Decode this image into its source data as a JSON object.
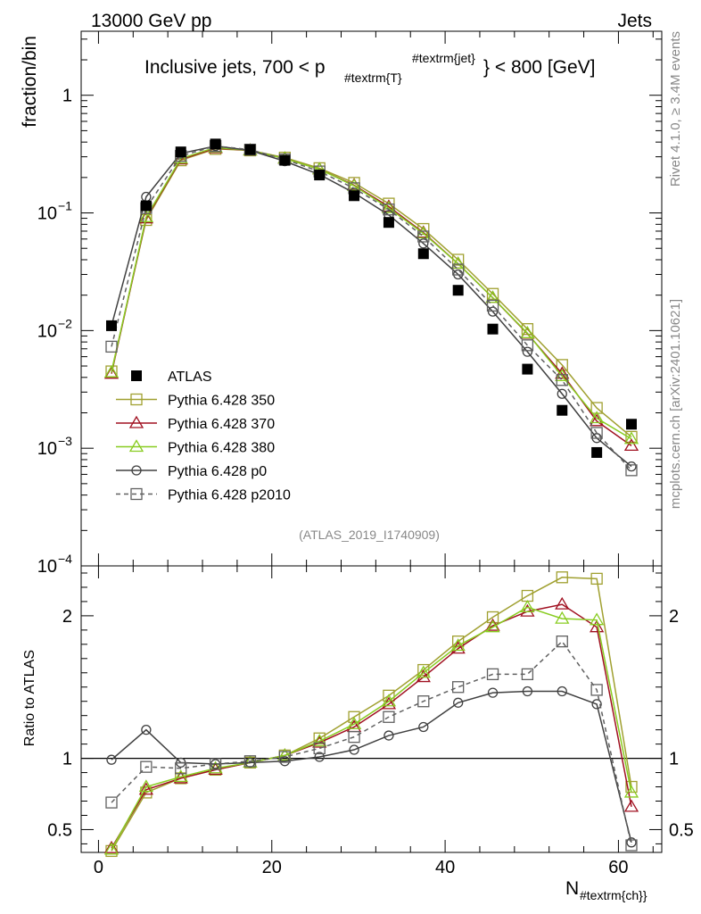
{
  "header": {
    "left": "13000 GeV pp",
    "right": "Jets"
  },
  "side": {
    "top": "Rivet 4.1.0, ≥ 3.4M events",
    "bottom": "mcplots.cern.ch [arXiv:2401.10621]"
  },
  "colors": {
    "atlas": "#000000",
    "p350": "#a0a030",
    "p370": "#a01020",
    "p380": "#88cc20",
    "p0": "#404040",
    "p2010": "#606060"
  },
  "chart_data": [
    {
      "type": "line",
      "title": "Inclusive jets, 700 < p",
      "title_sub": "#textrm{T}",
      "title_sup": "#textrm{jet}",
      "title_tail": "} < 800 [GeV]",
      "ylabel": "fraction/bin",
      "yscale": "log",
      "ylim": [
        0.0001,
        3.5
      ],
      "xlim": [
        -2,
        65
      ],
      "y_ticks": [
        {
          "v": 1,
          "base": "1",
          "exp": ""
        },
        {
          "v": 0.1,
          "base": "10",
          "exp": "−1"
        },
        {
          "v": 0.01,
          "base": "10",
          "exp": "−2"
        },
        {
          "v": 0.001,
          "base": "10",
          "exp": "−3"
        },
        {
          "v": 0.0001,
          "base": "10",
          "exp": "−4"
        }
      ],
      "watermark": "(ATLAS_2019_I1740909)",
      "x": [
        1.5,
        5.5,
        9.5,
        13.5,
        17.5,
        21.5,
        25.5,
        29.5,
        33.5,
        37.5,
        41.5,
        45.5,
        49.5,
        53.5,
        57.5,
        61.5
      ],
      "data": {
        "name": "ATLAS",
        "values": [
          0.011,
          0.115,
          0.33,
          0.385,
          0.345,
          0.28,
          0.21,
          0.14,
          0.083,
          0.045,
          0.022,
          0.0103,
          0.0047,
          0.0021,
          0.00092,
          0.0016
        ]
      },
      "series": [
        {
          "key": "p350",
          "name": "Pythia 6.428 350",
          "marker": "square",
          "dash": false,
          "values": [
            0.0045,
            0.087,
            0.28,
            0.35,
            0.34,
            0.295,
            0.24,
            0.18,
            0.12,
            0.073,
            0.04,
            0.0205,
            0.0103,
            0.0051,
            0.0022,
            0.00125
          ]
        },
        {
          "key": "p370",
          "name": "Pythia 6.428 370",
          "marker": "triangle",
          "dash": false,
          "values": [
            0.0043,
            0.09,
            0.285,
            0.355,
            0.34,
            0.29,
            0.235,
            0.172,
            0.113,
            0.068,
            0.037,
            0.019,
            0.0094,
            0.0043,
            0.0017,
            0.00105
          ]
        },
        {
          "key": "p380",
          "name": "Pythia 6.428 380",
          "marker": "triangle",
          "dash": false,
          "values": [
            0.0044,
            0.092,
            0.29,
            0.36,
            0.34,
            0.29,
            0.235,
            0.17,
            0.11,
            0.067,
            0.037,
            0.019,
            0.0095,
            0.0041,
            0.0018,
            0.0012
          ]
        },
        {
          "key": "p0",
          "name": "Pythia 6.428 p0",
          "marker": "circle",
          "dash": false,
          "values": [
            0.011,
            0.137,
            0.32,
            0.37,
            0.34,
            0.275,
            0.212,
            0.148,
            0.096,
            0.055,
            0.03,
            0.0145,
            0.0066,
            0.0029,
            0.00122,
            0.0007
          ]
        },
        {
          "key": "p2010",
          "name": "Pythia 6.428 p2010",
          "marker": "square",
          "dash": true,
          "values": [
            0.0073,
            0.11,
            0.305,
            0.37,
            0.345,
            0.285,
            0.225,
            0.162,
            0.107,
            0.063,
            0.033,
            0.0163,
            0.0075,
            0.0038,
            0.00135,
            0.00065
          ]
        }
      ]
    },
    {
      "type": "line",
      "ylabel": "Ratio to ATLAS",
      "xlabel": "N",
      "xlabel_sub": "#textrm{ch}}",
      "ylim": [
        0.34,
        2.35
      ],
      "xlim": [
        -2,
        65
      ],
      "y_ticks": [
        {
          "v": 0.5,
          "label": "0.5"
        },
        {
          "v": 1,
          "label": "1"
        },
        {
          "v": 2,
          "label": "2"
        }
      ],
      "x_ticks": [
        {
          "v": 0,
          "label": "0"
        },
        {
          "v": 20,
          "label": "20"
        },
        {
          "v": 40,
          "label": "40"
        },
        {
          "v": 60,
          "label": "60"
        }
      ],
      "series": [
        {
          "key": "p350",
          "values": [
            0.35,
            0.76,
            0.86,
            0.92,
            0.97,
            1.02,
            1.14,
            1.29,
            1.44,
            1.62,
            1.82,
            1.99,
            2.14,
            2.27,
            2.26,
            0.8
          ]
        },
        {
          "key": "p370",
          "values": [
            0.37,
            0.78,
            0.86,
            0.92,
            0.97,
            1.02,
            1.11,
            1.22,
            1.38,
            1.57,
            1.77,
            1.93,
            2.03,
            2.08,
            1.92,
            0.66
          ]
        },
        {
          "key": "p380",
          "values": [
            0.36,
            0.8,
            0.87,
            0.93,
            0.97,
            1.02,
            1.12,
            1.24,
            1.4,
            1.6,
            1.79,
            1.92,
            2.06,
            1.98,
            1.97,
            0.76
          ]
        },
        {
          "key": "p0",
          "values": [
            0.99,
            1.2,
            0.97,
            0.96,
            0.97,
            0.98,
            1.01,
            1.06,
            1.16,
            1.22,
            1.39,
            1.46,
            1.47,
            1.47,
            1.38,
            0.41
          ]
        },
        {
          "key": "p2010",
          "values": [
            0.69,
            0.94,
            0.93,
            0.96,
            0.98,
            1.01,
            1.07,
            1.15,
            1.29,
            1.4,
            1.5,
            1.59,
            1.59,
            1.82,
            1.48,
            0.39
          ]
        }
      ]
    }
  ]
}
